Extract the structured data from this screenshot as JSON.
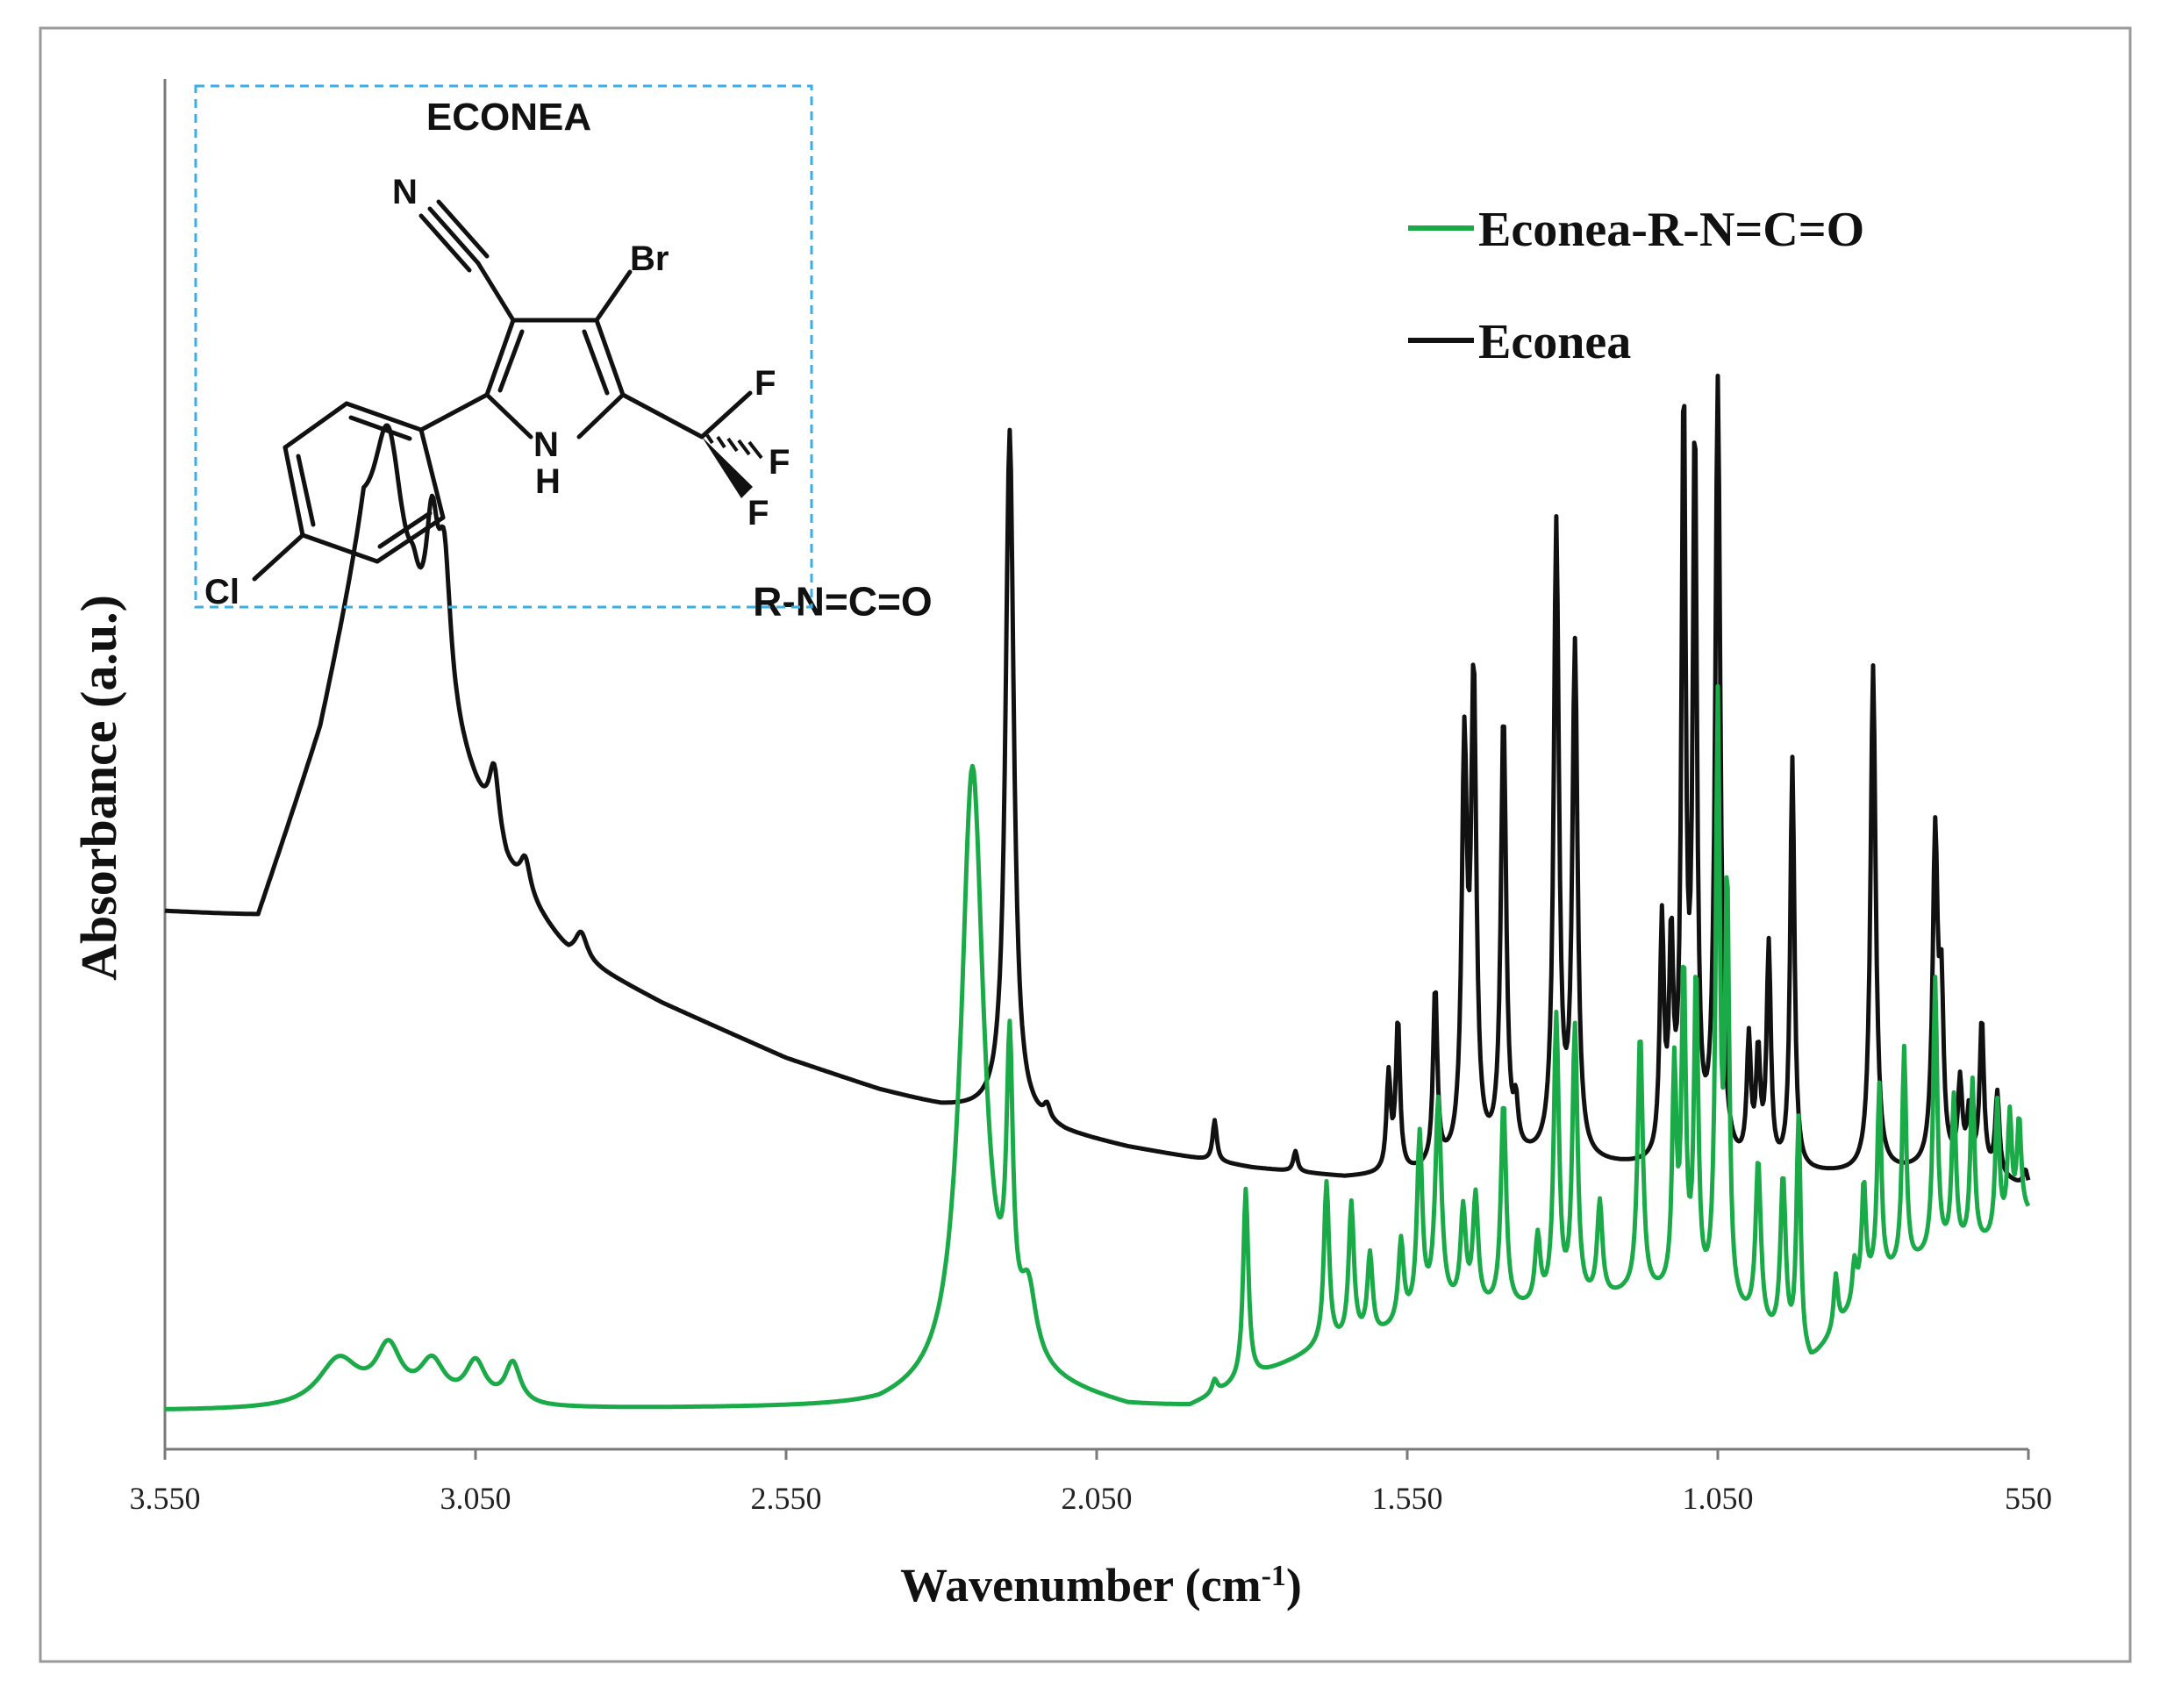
{
  "chart_data": {
    "type": "line",
    "title": "",
    "xlabel": "Wavenumber (cm",
    "xlabel_sup": "-1",
    "xlabel_close": ")",
    "ylabel": "Absorbance (a.u.)",
    "xlim": [
      3550,
      550
    ],
    "x_reversed": true,
    "y_units": "arbitrary (a.u.), no y tick labels",
    "ylim": [
      0,
      1.0
    ],
    "x_ticks": [
      3550,
      3050,
      2550,
      2050,
      1550,
      1050,
      550
    ],
    "x_tick_labels": [
      "3.550",
      "3.050",
      "2.550",
      "2.050",
      "1.550",
      "1.050",
      "550"
    ],
    "grid": false,
    "legend_position": "top-right",
    "colors": {
      "Econea-R-N=C=O": "#1aaa48",
      "Econea": "#111111",
      "inset_border": "#3aaee8"
    },
    "series": [
      {
        "name": "Econea",
        "color": "#111111",
        "baseline": [
          [
            3550,
            0.392
          ],
          [
            3400,
            0.388
          ],
          [
            3300,
            0.52
          ],
          [
            3230,
            0.66
          ],
          [
            3100,
            0.53
          ],
          [
            3000,
            0.42
          ],
          [
            2900,
            0.36
          ],
          [
            2750,
            0.325
          ],
          [
            2550,
            0.285
          ],
          [
            2400,
            0.262
          ],
          [
            2300,
            0.25
          ],
          [
            2200,
            0.245
          ],
          [
            2100,
            0.23
          ],
          [
            2000,
            0.22
          ],
          [
            1800,
            0.205
          ],
          [
            1650,
            0.198
          ],
          [
            1550,
            0.2
          ],
          [
            1400,
            0.21
          ],
          [
            1200,
            0.205
          ],
          [
            1000,
            0.2
          ],
          [
            800,
            0.2
          ],
          [
            650,
            0.205
          ],
          [
            550,
            0.19
          ]
        ],
        "peaks": [
          [
            3190,
            0.12,
            28
          ],
          [
            3150,
            0.02,
            10
          ],
          [
            3120,
            0.1,
            12
          ],
          [
            3100,
            0.1,
            12
          ],
          [
            3020,
            0.05,
            10
          ],
          [
            2970,
            0.025,
            10
          ],
          [
            2880,
            0.02,
            12
          ],
          [
            2190,
            0.5,
            8
          ],
          [
            2130,
            0.01,
            6
          ],
          [
            1860,
            0.03,
            4
          ],
          [
            1730,
            0.015,
            4
          ],
          [
            1580,
            0.07,
            4
          ],
          [
            1565,
            0.11,
            4
          ],
          [
            1505,
            0.13,
            4
          ],
          [
            1458,
            0.29,
            5
          ],
          [
            1443,
            0.34,
            5
          ],
          [
            1395,
            0.32,
            5
          ],
          [
            1375,
            0.03,
            4
          ],
          [
            1310,
            0.46,
            5
          ],
          [
            1280,
            0.37,
            5
          ],
          [
            1140,
            0.17,
            4
          ],
          [
            1125,
            0.15,
            4
          ],
          [
            1105,
            0.55,
            4
          ],
          [
            1087,
            0.52,
            4
          ],
          [
            1050,
            0.57,
            5
          ],
          [
            1000,
            0.09,
            4
          ],
          [
            985,
            0.08,
            4
          ],
          [
            968,
            0.16,
            4
          ],
          [
            930,
            0.3,
            4
          ],
          [
            800,
            0.37,
            5
          ],
          [
            700,
            0.24,
            5
          ],
          [
            690,
            0.11,
            4
          ],
          [
            660,
            0.06,
            4
          ],
          [
            645,
            0.04,
            4
          ],
          [
            625,
            0.11,
            4
          ],
          [
            600,
            0.06,
            4
          ],
          [
            555,
            0.012,
            4
          ]
        ]
      },
      {
        "name": "Econea-R-N=C=O",
        "color": "#1aaa48",
        "baseline": [
          [
            3550,
            0.028
          ],
          [
            3400,
            0.028
          ],
          [
            3300,
            0.028
          ],
          [
            2400,
            0.03
          ],
          [
            2350,
            0.035
          ],
          [
            2200,
            0.05
          ],
          [
            2100,
            0.04
          ],
          [
            2000,
            0.03
          ],
          [
            1900,
            0.03
          ],
          [
            1800,
            0.05
          ],
          [
            1700,
            0.07
          ],
          [
            1600,
            0.08
          ],
          [
            1500,
            0.1
          ],
          [
            1400,
            0.1
          ],
          [
            1300,
            0.1
          ],
          [
            1200,
            0.11
          ],
          [
            1100,
            0.11
          ],
          [
            1000,
            0.09
          ],
          [
            900,
            0.06
          ],
          [
            800,
            0.12
          ],
          [
            700,
            0.14
          ],
          [
            600,
            0.15
          ],
          [
            560,
            0.17
          ]
        ],
        "peaks": [
          [
            3270,
            0.035,
            40
          ],
          [
            3190,
            0.04,
            25
          ],
          [
            3120,
            0.03,
            25
          ],
          [
            3050,
            0.03,
            20
          ],
          [
            2990,
            0.03,
            15
          ],
          [
            2250,
            0.45,
            22
          ],
          [
            2190,
            0.2,
            6
          ],
          [
            2160,
            0.05,
            15
          ],
          [
            1860,
            0.01,
            5
          ],
          [
            1810,
            0.14,
            5
          ],
          [
            1680,
            0.12,
            5
          ],
          [
            1640,
            0.1,
            5
          ],
          [
            1610,
            0.06,
            5
          ],
          [
            1560,
            0.06,
            5
          ],
          [
            1530,
            0.13,
            5
          ],
          [
            1500,
            0.15,
            6
          ],
          [
            1460,
            0.07,
            5
          ],
          [
            1440,
            0.08,
            5
          ],
          [
            1395,
            0.15,
            5
          ],
          [
            1340,
            0.05,
            5
          ],
          [
            1310,
            0.21,
            5
          ],
          [
            1280,
            0.2,
            5
          ],
          [
            1240,
            0.07,
            5
          ],
          [
            1175,
            0.19,
            5
          ],
          [
            1120,
            0.16,
            4
          ],
          [
            1105,
            0.23,
            4
          ],
          [
            1085,
            0.23,
            4
          ],
          [
            1050,
            0.43,
            4
          ],
          [
            1035,
            0.3,
            4
          ],
          [
            985,
            0.12,
            5
          ],
          [
            945,
            0.12,
            5
          ],
          [
            920,
            0.17,
            4
          ],
          [
            860,
            0.04,
            4
          ],
          [
            830,
            0.03,
            4
          ],
          [
            815,
            0.08,
            4
          ],
          [
            790,
            0.14,
            4
          ],
          [
            750,
            0.16,
            4
          ],
          [
            700,
            0.2,
            4
          ],
          [
            670,
            0.11,
            4
          ],
          [
            640,
            0.12,
            4
          ],
          [
            600,
            0.1,
            4
          ],
          [
            580,
            0.08,
            4
          ],
          [
            565,
            0.07,
            4
          ]
        ]
      }
    ],
    "annotations": [
      {
        "text": "R-N=C=O",
        "x": 2250,
        "y": 0.62
      }
    ],
    "inset": {
      "title": "ECONEA",
      "atoms": {
        "n_nitrile": "N",
        "br": "Br",
        "nh_n": "N",
        "nh_h": "H",
        "cl": "Cl",
        "f1": "F",
        "f2": "F",
        "f3": "F"
      }
    }
  }
}
